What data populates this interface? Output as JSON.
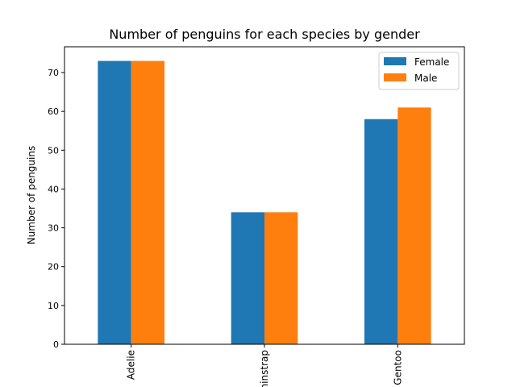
{
  "chart_data": {
    "type": "bar",
    "title": "Number of penguins for each species by gender",
    "xlabel": "",
    "ylabel": "Number of penguins",
    "categories": [
      "Adelie",
      "Chinstrap",
      "Gentoo"
    ],
    "series": [
      {
        "name": "Female",
        "values": [
          73,
          34,
          58
        ],
        "color": "#1f77b4"
      },
      {
        "name": "Male",
        "values": [
          73,
          34,
          61
        ],
        "color": "#ff7f0e"
      }
    ],
    "ylim": [
      0,
      76.65
    ],
    "yticks": [
      0,
      10,
      20,
      30,
      40,
      50,
      60,
      70
    ],
    "grid": false,
    "legend_position": "top-right"
  }
}
